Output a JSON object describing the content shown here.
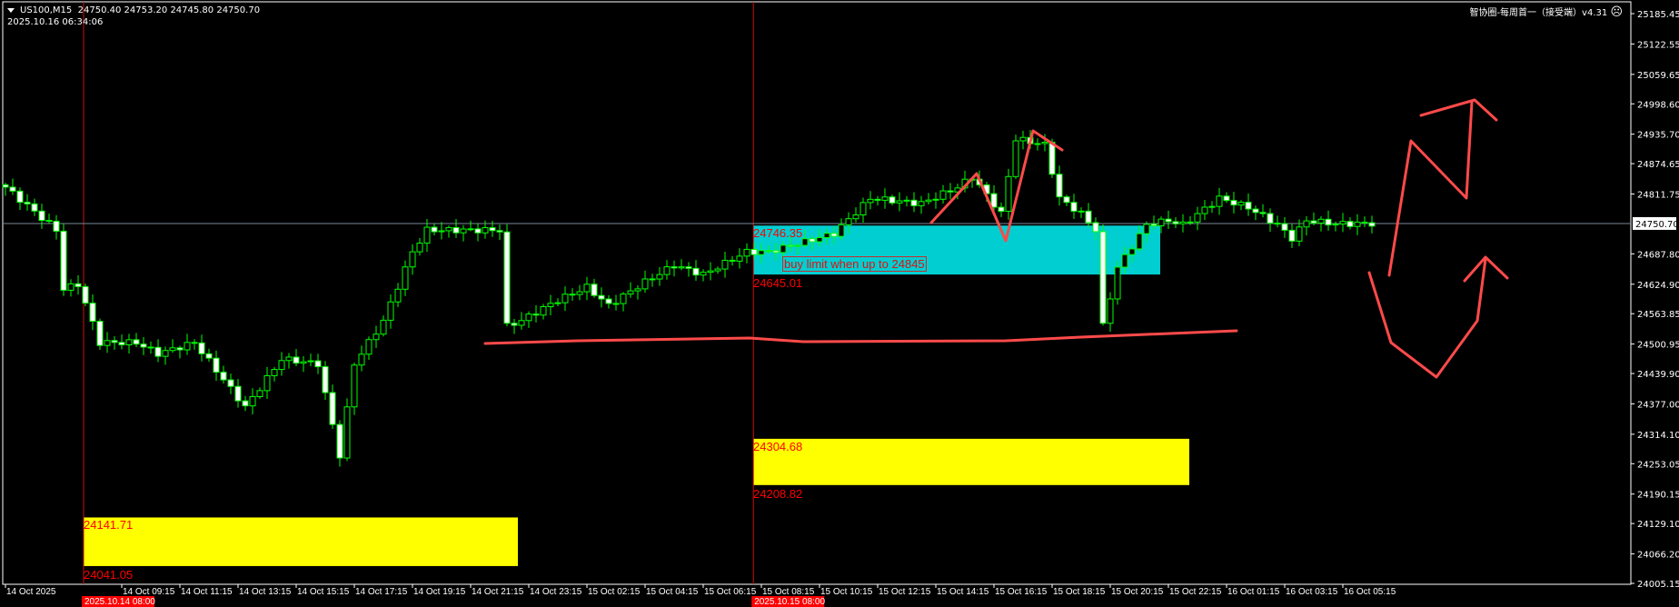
{
  "header": {
    "symbol_timeframe": "US100,M15",
    "ohlc": "24750.40 24753.20 24745.80 24750.70",
    "datetime": "2025.10.16 06:34:06",
    "indicator_name": "智协圈-每周首一（接受端）v4.31",
    "indicator_icon": "sad-face-icon"
  },
  "colors": {
    "background": "#000000",
    "candle_outline": "#00ff00",
    "bear_fill": "#ffffff",
    "bull_fill": "#000000",
    "zone_cyan": "#00ced1",
    "zone_yellow": "#ffff00",
    "label_red": "#ff0000",
    "drawing_red": "#ff4a4a",
    "bid_line": "#7a8a99"
  },
  "zones": {
    "cyan": {
      "top_label": "24746.35",
      "bottom_label": "24645.01",
      "top": 24746.35,
      "bottom": 24645.01,
      "note": "buy limit when up to 24845"
    },
    "yellow_mid": {
      "top_label": "24304.68",
      "bottom_label": "24208.82",
      "top": 24304.68,
      "bottom": 24208.82
    },
    "yellow_left": {
      "top_label": "24141.71",
      "bottom_label": "24041.05",
      "top": 24141.71,
      "bottom": 24041.05
    }
  },
  "chart_data": {
    "type": "candlestick",
    "symbol": "US100",
    "timeframe": "M15",
    "ylim": [
      24005.15,
      25185.45
    ],
    "current_price": "24750.70",
    "price_ticks": [
      "25185.45",
      "25122.55",
      "25059.65",
      "24998.60",
      "24935.70",
      "24874.65",
      "24811.75",
      "24687.80",
      "24624.90",
      "24563.85",
      "24500.95",
      "24439.90",
      "24377.00",
      "24314.10",
      "24253.05",
      "24190.15",
      "24129.10",
      "24066.20",
      "24005.15"
    ],
    "time_ticks": [
      {
        "bar": 0,
        "label": "14 Oct 2025"
      },
      {
        "bar": 16,
        "label": "14 Oct 09:15"
      },
      {
        "bar": 24,
        "label": "14 Oct 11:15"
      },
      {
        "bar": 32,
        "label": "14 Oct 13:15"
      },
      {
        "bar": 40,
        "label": "14 Oct 15:15"
      },
      {
        "bar": 48,
        "label": "14 Oct 17:15"
      },
      {
        "bar": 56,
        "label": "14 Oct 19:15"
      },
      {
        "bar": 64,
        "label": "14 Oct 21:15"
      },
      {
        "bar": 72,
        "label": "14 Oct 23:15"
      },
      {
        "bar": 80,
        "label": "15 Oct 02:15"
      },
      {
        "bar": 88,
        "label": "15 Oct 04:15"
      },
      {
        "bar": 96,
        "label": "15 Oct 06:15"
      },
      {
        "bar": 104,
        "label": "15 Oct 08:15"
      },
      {
        "bar": 112,
        "label": "15 Oct 10:15"
      },
      {
        "bar": 120,
        "label": "15 Oct 12:15"
      },
      {
        "bar": 128,
        "label": "15 Oct 14:15"
      },
      {
        "bar": 136,
        "label": "15 Oct 16:15"
      },
      {
        "bar": 144,
        "label": "15 Oct 18:15"
      },
      {
        "bar": 152,
        "label": "15 Oct 20:15"
      },
      {
        "bar": 160,
        "label": "15 Oct 22:15"
      },
      {
        "bar": 168,
        "label": "16 Oct 01:15"
      },
      {
        "bar": 176,
        "label": "16 Oct 03:15"
      },
      {
        "bar": 184,
        "label": "16 Oct 05:15"
      }
    ],
    "markers": [
      {
        "bar": 10.75,
        "label": "2025.10.14 08:00"
      },
      {
        "bar": 102.9,
        "label": "2025.10.15 08:00"
      }
    ],
    "bar_count": 189,
    "close_path": [
      [
        0,
        24826
      ],
      [
        7,
        24737
      ],
      [
        8,
        24615
      ],
      [
        10,
        24625
      ],
      [
        13,
        24504
      ],
      [
        18,
        24504
      ],
      [
        21,
        24481
      ],
      [
        26,
        24504
      ],
      [
        33,
        24370
      ],
      [
        38,
        24470
      ],
      [
        43,
        24460
      ],
      [
        46,
        24270
      ],
      [
        48,
        24460
      ],
      [
        52,
        24549
      ],
      [
        56,
        24692
      ],
      [
        58,
        24737
      ],
      [
        68,
        24737
      ],
      [
        69,
        24538
      ],
      [
        71,
        24550
      ],
      [
        76,
        24592
      ],
      [
        80,
        24619
      ],
      [
        83,
        24581
      ],
      [
        88,
        24630
      ],
      [
        92,
        24664
      ],
      [
        96,
        24645
      ],
      [
        102,
        24692
      ],
      [
        105,
        24692
      ],
      [
        114,
        24730
      ],
      [
        119,
        24803
      ],
      [
        126,
        24792
      ],
      [
        131,
        24826
      ],
      [
        133,
        24848
      ],
      [
        137,
        24771
      ],
      [
        139,
        24926
      ],
      [
        143,
        24914
      ],
      [
        145,
        24803
      ],
      [
        148,
        24771
      ],
      [
        150,
        24737
      ],
      [
        151,
        24538
      ],
      [
        153,
        24660
      ],
      [
        157,
        24748
      ],
      [
        160,
        24757
      ],
      [
        162,
        24748
      ],
      [
        167,
        24803
      ],
      [
        171,
        24784
      ],
      [
        175,
        24748
      ],
      [
        177,
        24720
      ],
      [
        179,
        24757
      ],
      [
        183,
        24750
      ],
      [
        188,
        24750.7
      ]
    ]
  }
}
